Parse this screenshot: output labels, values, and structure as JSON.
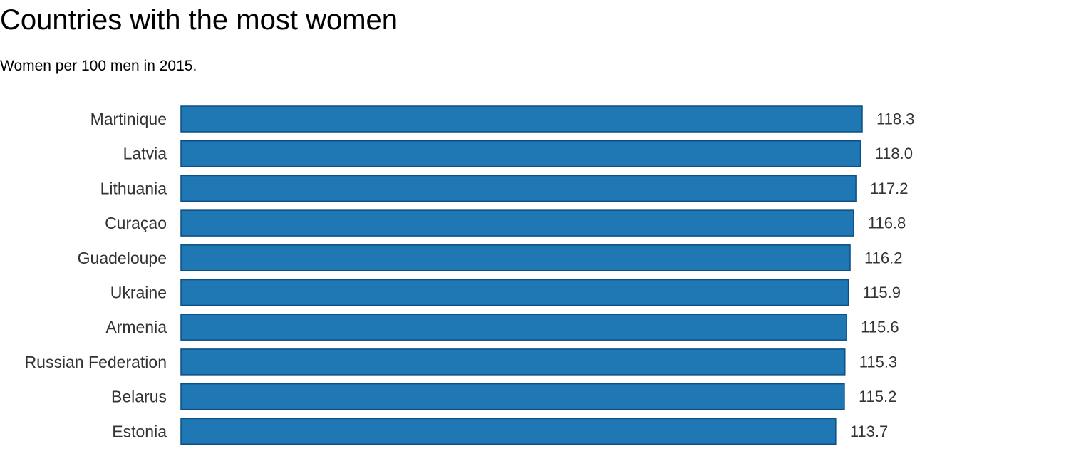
{
  "chart_data": {
    "type": "bar",
    "orientation": "horizontal",
    "title": "Countries with the most women",
    "subtitle": "Women per 100 men in 2015.",
    "xlabel": "",
    "ylabel": "",
    "grid": false,
    "legend": "none",
    "categories": [
      "Martinique",
      "Latvia",
      "Lithuania",
      "Curaçao",
      "Guadeloupe",
      "Ukraine",
      "Armenia",
      "Russian Federation",
      "Belarus",
      "Estonia"
    ],
    "values": [
      118.3,
      118.0,
      117.2,
      116.8,
      116.2,
      115.9,
      115.6,
      115.3,
      115.2,
      113.7
    ],
    "value_labels": [
      "118.3",
      "118.0",
      "117.2",
      "116.8",
      "116.2",
      "115.9",
      "115.6",
      "115.3",
      "115.2",
      "113.7"
    ],
    "xlim": [
      0,
      118.3
    ],
    "colors": {
      "bar_fill": "#1f77b4",
      "bar_stroke": "#0c4e85"
    }
  }
}
